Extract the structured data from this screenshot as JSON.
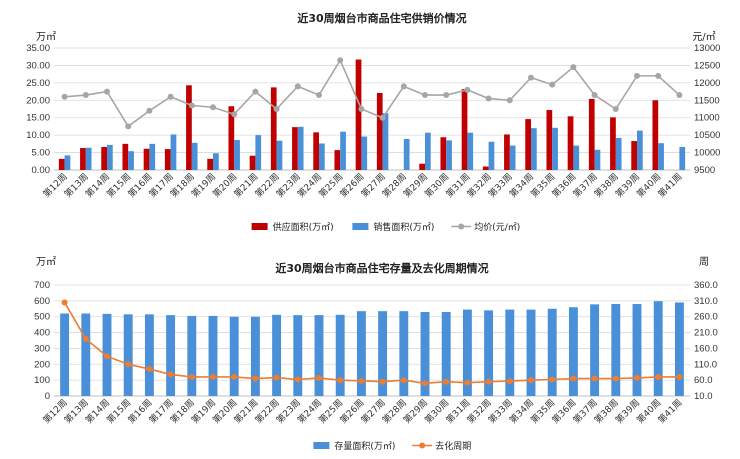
{
  "colors": {
    "supply": "#c00000",
    "sales": "#4a90d9",
    "price": "#a6a6a6",
    "stock": "#4a90d9",
    "cycle": "#ed7d31",
    "grid": "#d9d9d9",
    "axis": "#bfbfbf"
  },
  "chart_data": [
    {
      "type": "bar",
      "title": "近30周烟台市商品住宅供销价情况",
      "y_left_unit": "万㎡",
      "y_right_unit": "元/㎡",
      "ylim": [
        0,
        35
      ],
      "y_ticks": [
        "0.00",
        "5.00",
        "10.00",
        "15.00",
        "20.00",
        "25.00",
        "30.00",
        "35.00"
      ],
      "y2lim": [
        9500,
        13000
      ],
      "y2_ticks": [
        "9500",
        "10000",
        "10500",
        "11000",
        "11500",
        "12000",
        "12500",
        "13000"
      ],
      "categories": [
        "第12周",
        "第13周",
        "第14周",
        "第15周",
        "第16周",
        "第17周",
        "第18周",
        "第19周",
        "第20周",
        "第21周",
        "第22周",
        "第23周",
        "第24周",
        "第25周",
        "第26周",
        "第27周",
        "第28周",
        "第29周",
        "第30周",
        "第31周",
        "第32周",
        "第33周",
        "第34周",
        "第35周",
        "第36周",
        "第37周",
        "第38周",
        "第39周",
        "第40周",
        "第41周"
      ],
      "series": [
        {
          "name": "供应面积(万㎡)",
          "kind": "bar",
          "axis": "left",
          "values": [
            3.2,
            6.3,
            6.6,
            7.5,
            6.1,
            6.0,
            24.3,
            3.2,
            18.3,
            4.1,
            23.7,
            12.3,
            10.8,
            5.7,
            31.7,
            22.1,
            0,
            1.8,
            9.4,
            23.2,
            1.0,
            10.2,
            14.6,
            17.2,
            15.4,
            20.4,
            15.1,
            8.3,
            20.0,
            0
          ]
        },
        {
          "name": "销售面积(万㎡)",
          "kind": "bar",
          "axis": "left",
          "values": [
            4.2,
            6.4,
            7.2,
            5.4,
            7.5,
            10.2,
            7.8,
            4.8,
            8.6,
            10.0,
            8.4,
            12.4,
            7.6,
            11.0,
            9.6,
            16.3,
            8.9,
            10.7,
            8.5,
            10.7,
            8.1,
            7.0,
            12.0,
            12.1,
            7.0,
            5.8,
            9.2,
            11.3,
            7.7,
            6.6
          ]
        },
        {
          "name": "均价(元/㎡)",
          "kind": "line",
          "axis": "right",
          "values": [
            11600,
            11650,
            11750,
            10750,
            11200,
            11600,
            11350,
            11300,
            11100,
            11750,
            11250,
            11900,
            11650,
            12650,
            11250,
            11000,
            11900,
            11650,
            11650,
            11800,
            11550,
            11500,
            12150,
            11950,
            12450,
            11650,
            11250,
            12200,
            12200,
            11650
          ]
        }
      ]
    },
    {
      "type": "bar",
      "title": "近30周烟台市商品住宅存量及去化周期情况",
      "y_left_unit": "万㎡",
      "y_right_unit": "周",
      "ylim": [
        0,
        700
      ],
      "y_ticks": [
        "0",
        "100",
        "200",
        "300",
        "400",
        "500",
        "600",
        "700"
      ],
      "y2lim": [
        10,
        360
      ],
      "y2_ticks": [
        "10.0",
        "60.0",
        "110.0",
        "160.0",
        "210.0",
        "260.0",
        "310.0",
        "360.0"
      ],
      "categories": [
        "第12周",
        "第13周",
        "第14周",
        "第15周",
        "第16周",
        "第17周",
        "第18周",
        "第19周",
        "第20周",
        "第21周",
        "第22周",
        "第23周",
        "第24周",
        "第25周",
        "第26周",
        "第27周",
        "第28周",
        "第29周",
        "第30周",
        "第31周",
        "第32周",
        "第33周",
        "第34周",
        "第35周",
        "第36周",
        "第37周",
        "第38周",
        "第39周",
        "第40周",
        "第41周"
      ],
      "series": [
        {
          "name": "存量面积(万㎡)",
          "kind": "bar",
          "axis": "left",
          "values": [
            520,
            520,
            518,
            515,
            515,
            510,
            505,
            505,
            500,
            500,
            512,
            510,
            510,
            512,
            535,
            535,
            535,
            530,
            530,
            545,
            540,
            545,
            545,
            550,
            560,
            578,
            580,
            580,
            598,
            590
          ]
        },
        {
          "name": "去化周期",
          "kind": "line",
          "axis": "right",
          "values": [
            305,
            190,
            135,
            110,
            95,
            78,
            70,
            70,
            70,
            65,
            68,
            62,
            67,
            60,
            58,
            55,
            60,
            50,
            55,
            52,
            55,
            57,
            60,
            62,
            65,
            65,
            65,
            67,
            70,
            70
          ]
        }
      ]
    }
  ]
}
